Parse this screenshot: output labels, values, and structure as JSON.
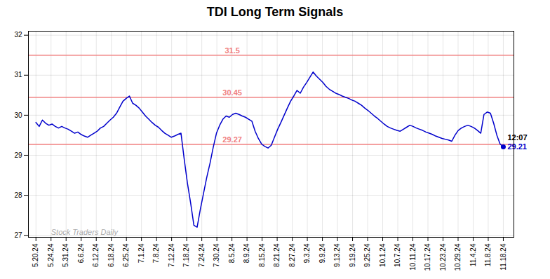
{
  "chart_data": {
    "type": "line",
    "title": "TDI Long Term Signals",
    "color": "#0000cc",
    "grid": true,
    "xlim": [
      -0.5,
      31.7
    ],
    "xticks": [
      {
        "value": 0,
        "label": "5.20.24"
      },
      {
        "value": 1,
        "label": "5.24.24"
      },
      {
        "value": 2,
        "label": "5.31.24"
      },
      {
        "value": 3,
        "label": "6.6.24"
      },
      {
        "value": 4,
        "label": "6.12.24"
      },
      {
        "value": 5,
        "label": "6.18.24"
      },
      {
        "value": 6,
        "label": "6.25.24"
      },
      {
        "value": 7,
        "label": "7.1.24"
      },
      {
        "value": 8,
        "label": "7.8.24"
      },
      {
        "value": 9,
        "label": "7.12.24"
      },
      {
        "value": 10,
        "label": "7.18.24"
      },
      {
        "value": 11,
        "label": "7.24.24"
      },
      {
        "value": 12,
        "label": "7.30.24"
      },
      {
        "value": 13,
        "label": "8.5.24"
      },
      {
        "value": 14,
        "label": "8.9.24"
      },
      {
        "value": 15,
        "label": "8.15.24"
      },
      {
        "value": 16,
        "label": "8.21.24"
      },
      {
        "value": 17,
        "label": "8.27.24"
      },
      {
        "value": 18,
        "label": "9.3.24"
      },
      {
        "value": 19,
        "label": "9.9.24"
      },
      {
        "value": 20,
        "label": "9.13.24"
      },
      {
        "value": 21,
        "label": "9.19.24"
      },
      {
        "value": 22,
        "label": "9.25.24"
      },
      {
        "value": 23,
        "label": "10.1.24"
      },
      {
        "value": 24,
        "label": "10.7.24"
      },
      {
        "value": 25,
        "label": "10.11.24"
      },
      {
        "value": 26,
        "label": "10.17.24"
      },
      {
        "value": 27,
        "label": "10.23.24"
      },
      {
        "value": 28,
        "label": "10.29.24"
      },
      {
        "value": 29,
        "label": "11.4.24"
      },
      {
        "value": 30,
        "label": "11.8.24"
      },
      {
        "value": 31,
        "label": "11.18.24"
      }
    ],
    "ylim": [
      26.95,
      32.1
    ],
    "yticks": [
      27,
      28,
      29,
      30,
      31,
      32
    ],
    "x": [
      0,
      0.2138,
      0.4276,
      0.6414,
      0.8552,
      1.069,
      1.2828,
      1.4966,
      1.7103,
      1.9241,
      2.1379,
      2.3517,
      2.5655,
      2.7793,
      2.9931,
      3.2069,
      3.4207,
      3.6345,
      3.8483,
      4.0621,
      4.2759,
      4.4897,
      4.7034,
      4.9172,
      5.131,
      5.3448,
      5.5586,
      5.7724,
      5.9862,
      6.2,
      6.4138,
      6.6276,
      6.8414,
      7.0552,
      7.269,
      7.4828,
      7.6966,
      7.9103,
      8.1241,
      8.3379,
      8.5517,
      8.7655,
      8.9793,
      9.1931,
      9.4069,
      9.6207,
      9.8345,
      10.0483,
      10.2621,
      10.4759,
      10.6897,
      10.9034,
      11.1172,
      11.331,
      11.5448,
      11.7586,
      11.9724,
      12.1862,
      12.4,
      12.6138,
      12.8276,
      13.0414,
      13.2552,
      13.469,
      13.6828,
      13.8966,
      14.1103,
      14.3241,
      14.5379,
      14.7517,
      14.9655,
      15.1793,
      15.3931,
      15.6069,
      15.8207,
      16.0345,
      16.2483,
      16.4621,
      16.6759,
      16.8897,
      17.1034,
      17.3172,
      17.531,
      17.7448,
      17.9586,
      18.1724,
      18.3862,
      18.6,
      18.8138,
      19.0276,
      19.2414,
      19.4552,
      19.669,
      19.8828,
      20.0966,
      20.3103,
      20.5241,
      20.7379,
      20.9517,
      21.1655,
      21.3793,
      21.5931,
      21.8069,
      22.0207,
      22.2345,
      22.4483,
      22.6621,
      22.8759,
      23.0897,
      23.3034,
      23.5172,
      23.731,
      23.9448,
      24.1586,
      24.3724,
      24.5862,
      24.8,
      25.0138,
      25.2276,
      25.4414,
      25.6552,
      25.869,
      26.0828,
      26.2966,
      26.5103,
      26.7241,
      26.9379,
      27.1517,
      27.3655,
      27.5793,
      27.7931,
      28.0069,
      28.2207,
      28.4345,
      28.6483,
      28.8621,
      29.0759,
      29.2897,
      29.5034,
      29.7172,
      29.931,
      30.1448,
      30.3586,
      30.5724,
      30.7862,
      31
    ],
    "values": [
      29.82,
      29.72,
      29.88,
      29.8,
      29.75,
      29.78,
      29.72,
      29.68,
      29.72,
      29.68,
      29.65,
      29.6,
      29.55,
      29.58,
      29.52,
      29.48,
      29.45,
      29.5,
      29.55,
      29.6,
      29.68,
      29.72,
      29.8,
      29.88,
      29.95,
      30.05,
      30.2,
      30.35,
      30.42,
      30.48,
      30.3,
      30.25,
      30.18,
      30.08,
      29.98,
      29.9,
      29.82,
      29.75,
      29.7,
      29.62,
      29.55,
      29.5,
      29.45,
      29.48,
      29.52,
      29.55,
      28.9,
      28.3,
      27.8,
      27.25,
      27.2,
      27.65,
      28.05,
      28.45,
      28.8,
      29.2,
      29.55,
      29.75,
      29.9,
      29.98,
      29.95,
      30.02,
      30.05,
      30.02,
      29.98,
      29.95,
      29.9,
      29.85,
      29.6,
      29.42,
      29.28,
      29.22,
      29.18,
      29.25,
      29.45,
      29.65,
      29.82,
      30.0,
      30.18,
      30.35,
      30.48,
      30.62,
      30.55,
      30.7,
      30.82,
      30.95,
      31.08,
      30.98,
      30.9,
      30.82,
      30.72,
      30.65,
      30.6,
      30.55,
      30.52,
      30.48,
      30.45,
      30.42,
      30.38,
      30.35,
      30.3,
      30.25,
      30.18,
      30.12,
      30.05,
      29.98,
      29.92,
      29.85,
      29.78,
      29.72,
      29.68,
      29.65,
      29.62,
      29.6,
      29.65,
      29.7,
      29.75,
      29.72,
      29.68,
      29.65,
      29.62,
      29.58,
      29.55,
      29.52,
      29.48,
      29.45,
      29.42,
      29.4,
      29.38,
      29.35,
      29.5,
      29.62,
      29.68,
      29.72,
      29.75,
      29.72,
      29.68,
      29.62,
      29.55,
      30.02,
      30.08,
      30.05,
      29.8,
      29.5,
      29.28,
      29.21
    ],
    "hlines": {
      "values": [
        31.5,
        30.45,
        29.27
      ],
      "color": "#f08080"
    },
    "annotations": [
      {
        "text": "12:07",
        "x": 31,
        "y": 29.21
      },
      {
        "text": "29.21",
        "x": 31,
        "y": 29.21,
        "color": "#0000cc"
      },
      {
        "text": "Stock Traders Daily",
        "x": 1.0,
        "y": 27.08,
        "color": "#aaaaaa"
      }
    ]
  }
}
